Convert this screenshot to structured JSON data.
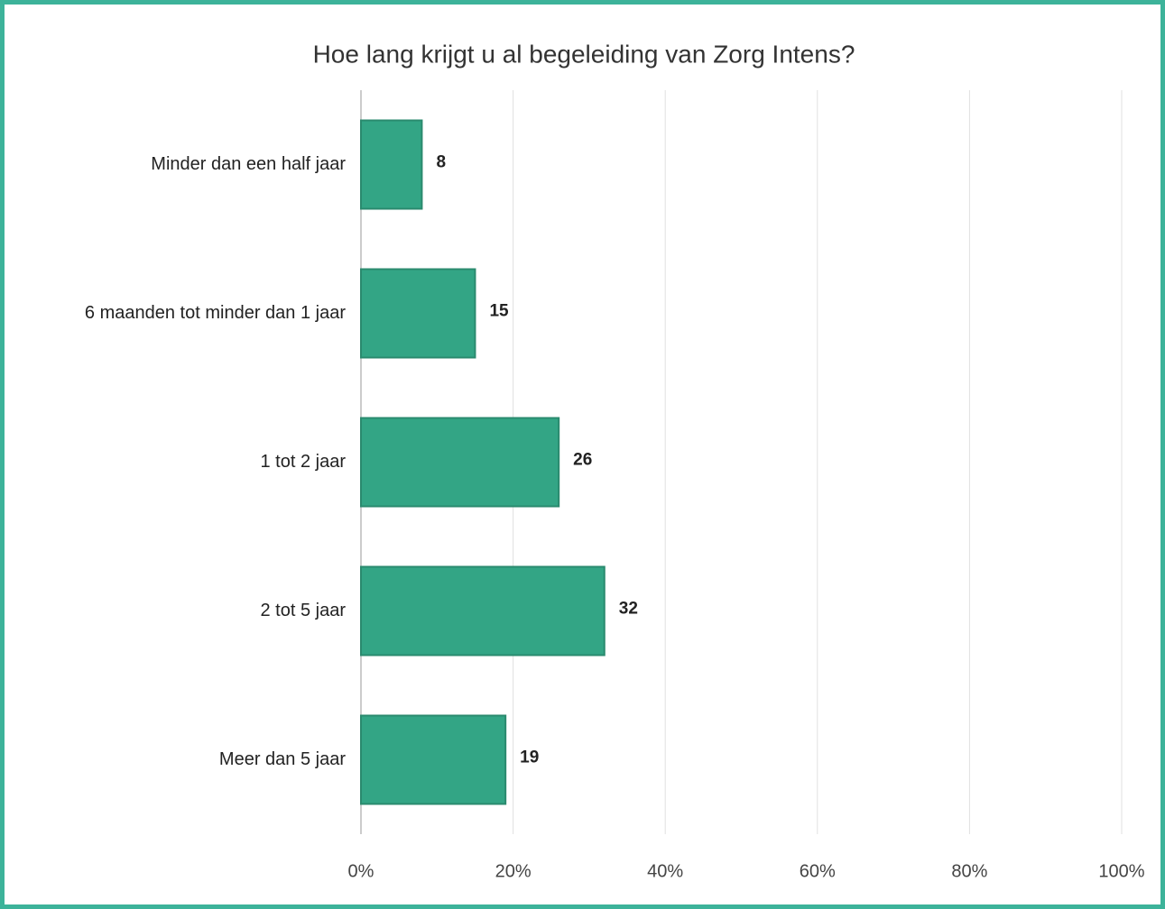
{
  "chart_data": {
    "type": "hbar",
    "title": "Hoe lang krijgt u al begeleiding van Zorg Intens?",
    "categories": [
      "Minder dan een half jaar",
      "6 maanden tot minder dan 1 jaar",
      "1 tot 2 jaar",
      "2 tot 5 jaar",
      "Meer dan 5 jaar"
    ],
    "values": [
      8,
      15,
      26,
      32,
      19
    ],
    "color": "#33a585",
    "xlim": [
      0,
      100
    ],
    "xticks": [
      {
        "value": 0,
        "label": "0%"
      },
      {
        "value": 20,
        "label": "20%"
      },
      {
        "value": 40,
        "label": "40%"
      },
      {
        "value": 60,
        "label": "60%"
      },
      {
        "value": 80,
        "label": "80%"
      },
      {
        "value": 100,
        "label": "100%"
      }
    ],
    "grid": true
  }
}
